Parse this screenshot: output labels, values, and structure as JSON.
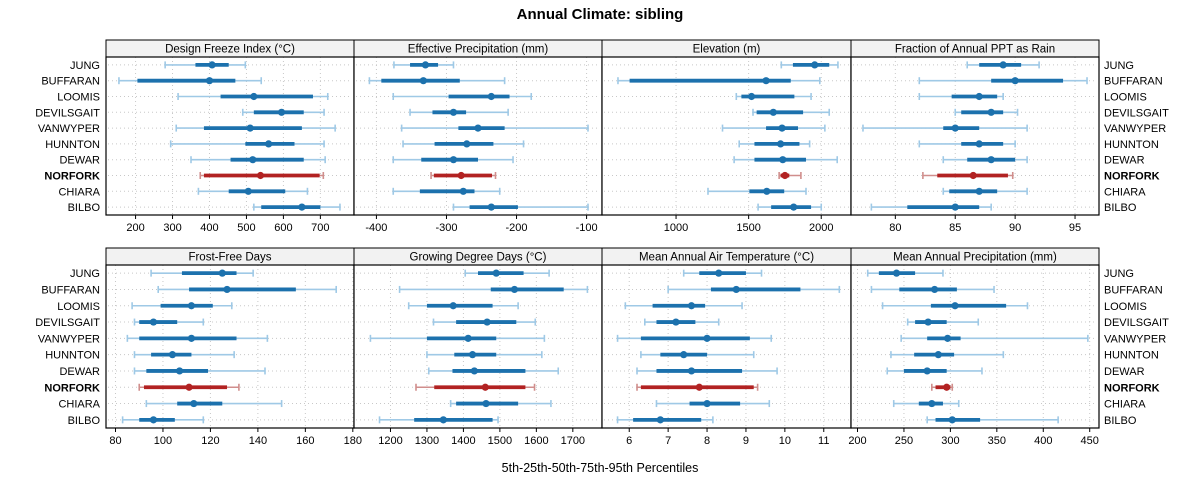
{
  "title": "Annual Climate: sibling",
  "caption": "5th-25th-50th-75th-95th Percentiles",
  "stations": [
    "JUNG",
    "BUFFARAN",
    "LOOMIS",
    "DEVILSGAIT",
    "VANWYPER",
    "HUNNTON",
    "DEWAR",
    "NORFORK",
    "CHIARA",
    "BILBO"
  ],
  "highlight_station": "NORFORK",
  "colors": {
    "series": "#1c71ad",
    "series_light": "#9fc9e6",
    "highlight": "#b22222",
    "highlight_light": "#d08e8c",
    "grid": "#c8c8c8",
    "header_bg": "#f2f2f2",
    "border": "#000000"
  },
  "chart_data": [
    {
      "type": "percentile-interval",
      "title": "Design Freeze Index (°C)",
      "percentiles": [
        5,
        25,
        50,
        75,
        95
      ],
      "xlim": [
        120,
        791
      ],
      "ticks": [
        200,
        300,
        400,
        500,
        600,
        700
      ],
      "values": [
        [
          280,
          362,
          407,
          452,
          497
        ],
        [
          155,
          205,
          400,
          470,
          540
        ],
        [
          315,
          430,
          520,
          680,
          720
        ],
        [
          490,
          520,
          595,
          655,
          710
        ],
        [
          310,
          385,
          510,
          650,
          740
        ],
        [
          295,
          497,
          560,
          630,
          710
        ],
        [
          350,
          457,
          517,
          655,
          713
        ],
        [
          375,
          385,
          538,
          698,
          708
        ],
        [
          370,
          452,
          505,
          605,
          665
        ],
        [
          520,
          540,
          650,
          700,
          753
        ]
      ]
    },
    {
      "type": "percentile-interval",
      "title": "Effective Precipitation (mm)",
      "percentiles": [
        5,
        25,
        50,
        75,
        95
      ],
      "xlim": [
        -432,
        -78
      ],
      "ticks": [
        -400,
        -300,
        -200,
        -100
      ],
      "values": [
        [
          -375,
          -352,
          -330,
          -312,
          -290
        ],
        [
          -410,
          -393,
          -333,
          -281,
          -217
        ],
        [
          -376,
          -297,
          -236,
          -210,
          -179
        ],
        [
          -352,
          -320,
          -290,
          -272,
          -212
        ],
        [
          -364,
          -283,
          -255,
          -217,
          -98
        ],
        [
          -362,
          -317,
          -271,
          -233,
          -190
        ],
        [
          -376,
          -336,
          -290,
          -255,
          -205
        ],
        [
          -322,
          -318,
          -279,
          -235,
          -230
        ],
        [
          -376,
          -338,
          -276,
          -260,
          -224
        ],
        [
          -290,
          -267,
          -236,
          -198,
          -98
        ]
      ]
    },
    {
      "type": "percentile-interval",
      "title": "Elevation (m)",
      "percentiles": [
        5,
        25,
        50,
        75,
        95
      ],
      "xlim": [
        490,
        2205
      ],
      "ticks": [
        1000,
        1500,
        2000
      ],
      "values": [
        [
          1725,
          1805,
          1955,
          2055,
          2115
        ],
        [
          600,
          680,
          1620,
          1790,
          1990
        ],
        [
          1415,
          1450,
          1520,
          1815,
          1930
        ],
        [
          1530,
          1555,
          1670,
          1875,
          2055
        ],
        [
          1320,
          1620,
          1730,
          1840,
          2025
        ],
        [
          1435,
          1540,
          1720,
          1850,
          1920
        ],
        [
          1400,
          1540,
          1735,
          1895,
          2110
        ],
        [
          1710,
          1720,
          1750,
          1780,
          1860
        ],
        [
          1220,
          1505,
          1625,
          1745,
          1895
        ],
        [
          1565,
          1655,
          1810,
          1930,
          2000
        ]
      ]
    },
    {
      "type": "percentile-interval",
      "title": "Fraction of Annual PPT as Rain",
      "percentiles": [
        5,
        25,
        50,
        75,
        95
      ],
      "xlim": [
        76.3,
        97
      ],
      "ticks": [
        80,
        85,
        90,
        95
      ],
      "values": [
        [
          86,
          87,
          89,
          90.5,
          92
        ],
        [
          82,
          88,
          90,
          94,
          96
        ],
        [
          82,
          84.7,
          87,
          88.5,
          89
        ],
        [
          85,
          85.5,
          88,
          89,
          90.2
        ],
        [
          77.3,
          84,
          85,
          87,
          91
        ],
        [
          82,
          85.5,
          87,
          89,
          90
        ],
        [
          84,
          86,
          88,
          90,
          91
        ],
        [
          82.3,
          83.5,
          86.5,
          89.4,
          89.8
        ],
        [
          84,
          84.5,
          87,
          88.5,
          91
        ],
        [
          78,
          81,
          85,
          87,
          88
        ]
      ]
    },
    {
      "type": "percentile-interval",
      "title": "Frost-Free Days",
      "percentiles": [
        5,
        25,
        50,
        75,
        95
      ],
      "xlim": [
        76,
        180.5
      ],
      "ticks": [
        80,
        100,
        120,
        140,
        160,
        180
      ],
      "values": [
        [
          95,
          108,
          125,
          131,
          138
        ],
        [
          98,
          111,
          127,
          156,
          173
        ],
        [
          87,
          99,
          112,
          121,
          129
        ],
        [
          88,
          90,
          96,
          106,
          117
        ],
        [
          85,
          90,
          112,
          131,
          144
        ],
        [
          88,
          95,
          104,
          112,
          130
        ],
        [
          88,
          93,
          107,
          119,
          143
        ],
        [
          90,
          92,
          111,
          127,
          132
        ],
        [
          93,
          106,
          113,
          125,
          150
        ],
        [
          83,
          90,
          96,
          105,
          117
        ]
      ]
    },
    {
      "type": "percentile-interval",
      "title": "Growing Degree Days (°C)",
      "percentiles": [
        5,
        25,
        50,
        75,
        95
      ],
      "xlim": [
        1100,
        1780
      ],
      "ticks": [
        1200,
        1300,
        1400,
        1500,
        1600,
        1700
      ],
      "values": [
        [
          1405,
          1440,
          1490,
          1565,
          1635
        ],
        [
          1225,
          1475,
          1540,
          1675,
          1740
        ],
        [
          1250,
          1300,
          1372,
          1480,
          1550
        ],
        [
          1318,
          1380,
          1465,
          1545,
          1597
        ],
        [
          1145,
          1300,
          1413,
          1490,
          1622
        ],
        [
          1300,
          1375,
          1425,
          1490,
          1615
        ],
        [
          1305,
          1370,
          1430,
          1570,
          1660
        ],
        [
          1270,
          1320,
          1460,
          1570,
          1595
        ],
        [
          1365,
          1380,
          1462,
          1550,
          1640
        ],
        [
          1170,
          1265,
          1345,
          1480,
          1495
        ]
      ]
    },
    {
      "type": "percentile-interval",
      "title": "Mean Annual Air Temperature (°C)",
      "percentiles": [
        5,
        25,
        50,
        75,
        95
      ],
      "xlim": [
        5.3,
        11.7
      ],
      "ticks": [
        6,
        7,
        8,
        9,
        10,
        11
      ],
      "values": [
        [
          7.4,
          7.8,
          8.3,
          9.0,
          9.4
        ],
        [
          7.0,
          8.1,
          8.75,
          10.4,
          11.4
        ],
        [
          5.9,
          6.6,
          7.6,
          7.95,
          8.9
        ],
        [
          6.4,
          6.7,
          7.2,
          7.7,
          8.3
        ],
        [
          5.7,
          6.3,
          8.0,
          9.1,
          9.65
        ],
        [
          6.3,
          6.8,
          7.4,
          8.0,
          9.2
        ],
        [
          6.2,
          6.7,
          7.6,
          8.9,
          9.8
        ],
        [
          6.2,
          6.3,
          7.8,
          9.2,
          9.3
        ],
        [
          6.7,
          7.55,
          8.0,
          8.85,
          9.6
        ],
        [
          5.7,
          6.1,
          6.8,
          7.85,
          8.15
        ]
      ]
    },
    {
      "type": "percentile-interval",
      "title": "Mean Annual Precipitation (mm)",
      "percentiles": [
        5,
        25,
        50,
        75,
        95
      ],
      "xlim": [
        193,
        460
      ],
      "ticks": [
        200,
        250,
        300,
        350,
        400,
        450
      ],
      "values": [
        [
          211,
          223,
          242,
          262,
          292
        ],
        [
          215,
          245,
          283,
          307,
          347
        ],
        [
          227,
          279,
          305,
          360,
          383
        ],
        [
          254,
          262,
          276,
          296,
          330
        ],
        [
          247,
          275,
          297,
          311,
          448
        ],
        [
          236,
          261,
          287,
          304,
          357
        ],
        [
          232,
          250,
          275,
          296,
          334
        ],
        [
          280,
          284,
          296,
          300,
          302
        ],
        [
          239,
          266,
          280,
          292,
          309
        ],
        [
          275,
          284,
          302,
          332,
          416
        ]
      ]
    }
  ]
}
